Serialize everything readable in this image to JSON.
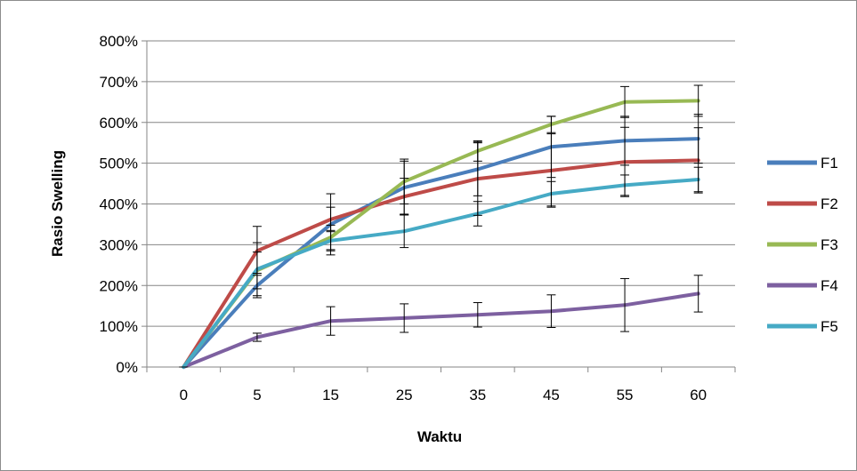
{
  "chart_data": {
    "type": "line",
    "title": "",
    "xlabel": "Waktu",
    "ylabel": "Rasio Swelling",
    "categories": [
      "0",
      "5",
      "15",
      "25",
      "35",
      "45",
      "55",
      "60"
    ],
    "y_ticks": [
      "0%",
      "100%",
      "200%",
      "300%",
      "400%",
      "500%",
      "600%",
      "700%",
      "800%"
    ],
    "ylim": [
      0,
      800
    ],
    "y_unit": "percent",
    "grid": "horizontal",
    "legend_position": "right",
    "series": [
      {
        "name": "F1",
        "color": "#4a7ebb",
        "values": [
          0,
          200,
          350,
          440,
          485,
          540,
          555,
          560
        ],
        "errors": [
          0,
          30,
          75,
          65,
          65,
          75,
          60,
          60
        ]
      },
      {
        "name": "F2",
        "color": "#be4b48",
        "values": [
          0,
          285,
          362,
          418,
          462,
          482,
          503,
          507
        ],
        "errors": [
          0,
          60,
          30,
          45,
          90,
          90,
          85,
          80
        ]
      },
      {
        "name": "F3",
        "color": "#98b954",
        "values": [
          0,
          237,
          318,
          455,
          530,
          595,
          650,
          653
        ],
        "errors": [
          0,
          45,
          30,
          55,
          25,
          20,
          38,
          38
        ]
      },
      {
        "name": "F4",
        "color": "#7d60a0",
        "values": [
          0,
          73,
          113,
          120,
          128,
          137,
          152,
          180
        ],
        "errors": [
          0,
          10,
          35,
          35,
          30,
          40,
          65,
          45
        ]
      },
      {
        "name": "F5",
        "color": "#46aac5",
        "values": [
          0,
          240,
          310,
          333,
          376,
          425,
          446,
          460
        ],
        "errors": [
          0,
          65,
          25,
          40,
          30,
          30,
          25,
          30
        ]
      }
    ]
  }
}
